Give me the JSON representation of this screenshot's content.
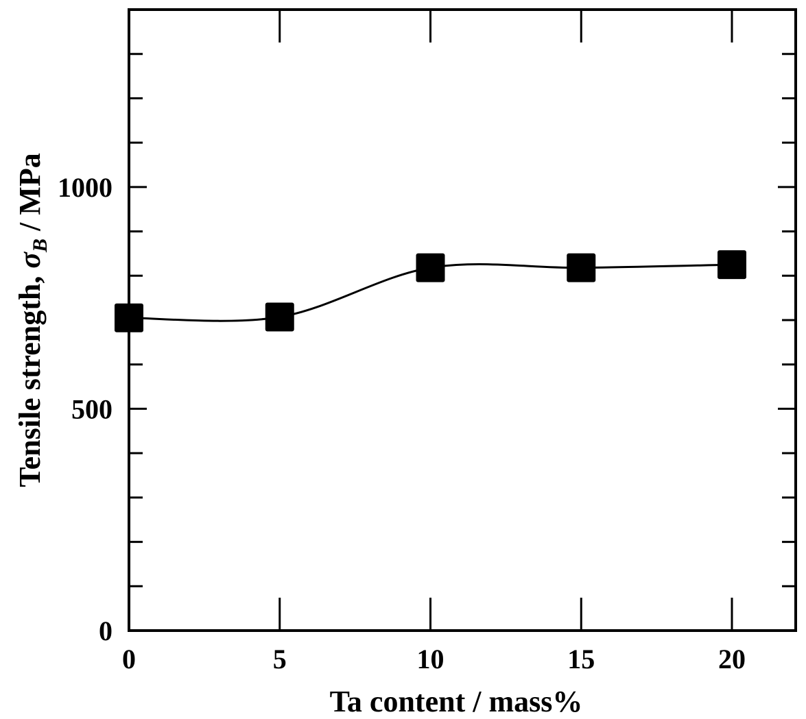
{
  "chart_data": {
    "type": "line",
    "title": "",
    "xlabel": "Ta content / mass%",
    "ylabel": {
      "prefix": "Tensile strength, ",
      "symbol": "σ",
      "subscript": "B",
      "suffix": " / MPa"
    },
    "xlim": [
      0,
      22
    ],
    "ylim": [
      0,
      1400
    ],
    "x_ticks": [
      0,
      5,
      10,
      15,
      20
    ],
    "x_tick_labels": [
      "0",
      "5",
      "10",
      "15",
      "20"
    ],
    "y_ticks": [
      0,
      500,
      1000
    ],
    "y_tick_labels": [
      "0",
      "500",
      "1000"
    ],
    "y_minor_step": 100,
    "grid": false,
    "legend": "none",
    "series": [
      {
        "marker": "square",
        "color": "#000000",
        "x": [
          0,
          5,
          10,
          15,
          20
        ],
        "y": [
          705,
          707,
          818,
          818,
          825
        ]
      }
    ]
  }
}
